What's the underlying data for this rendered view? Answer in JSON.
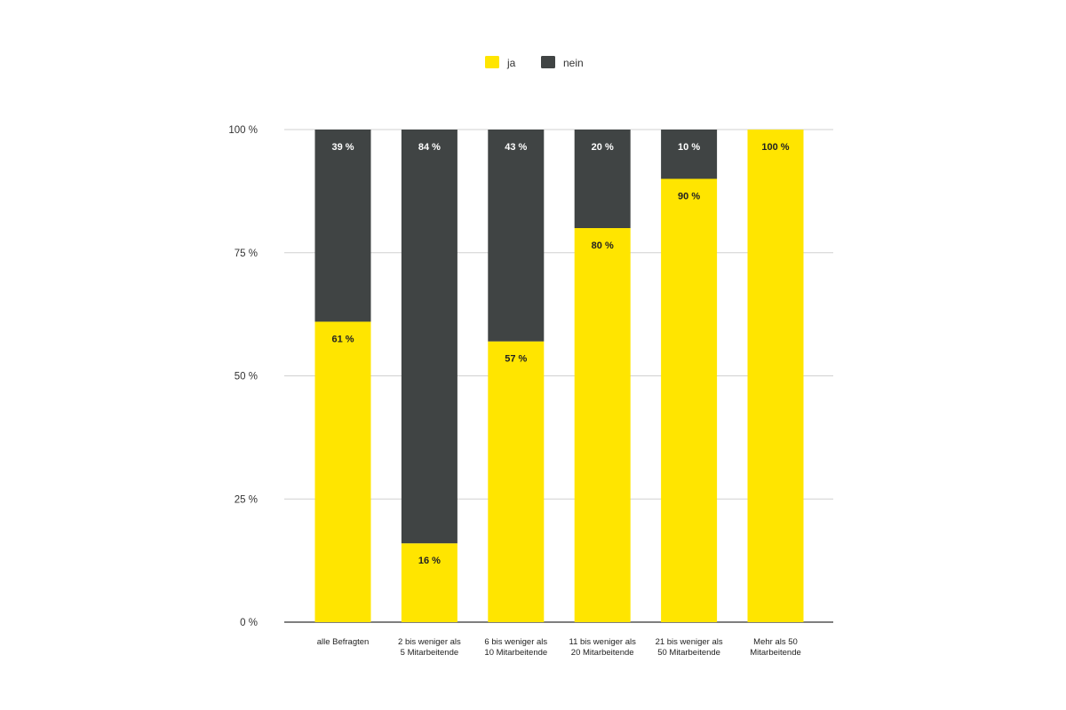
{
  "chart_data": {
    "type": "bar",
    "stacked": true,
    "categories": [
      [
        "alle Befragten"
      ],
      [
        "2 bis weniger als",
        "5 Mitarbeitende"
      ],
      [
        "6 bis weniger als",
        "10 Mitarbeitende"
      ],
      [
        "11 bis weniger als",
        "20 Mitarbeitende"
      ],
      [
        "21 bis weniger als",
        "50 Mitarbeitende"
      ],
      [
        "Mehr als 50",
        "Mitarbeitende"
      ]
    ],
    "series": [
      {
        "name": "ja",
        "color": "#FFE500",
        "label_color": "#222222",
        "values": [
          61,
          16,
          57,
          80,
          90,
          100
        ],
        "labels": [
          "61 %",
          "16 %",
          "57 %",
          "80 %",
          "90 %",
          "100 %"
        ]
      },
      {
        "name": "nein",
        "color": "#404444",
        "label_color": "#FFFFFF",
        "values": [
          39,
          84,
          43,
          20,
          10,
          0
        ],
        "labels": [
          "39 %",
          "84 %",
          "43 %",
          "20 %",
          "10 %",
          ""
        ]
      }
    ],
    "yticks": [
      0,
      25,
      50,
      75,
      100
    ],
    "ytick_labels": [
      "0 %",
      "25 %",
      "50 %",
      "75 %",
      "100 %"
    ],
    "ylim": [
      0,
      100
    ],
    "title": "",
    "xlabel": "",
    "ylabel": "",
    "grid": true,
    "legend_position": "top-center"
  }
}
